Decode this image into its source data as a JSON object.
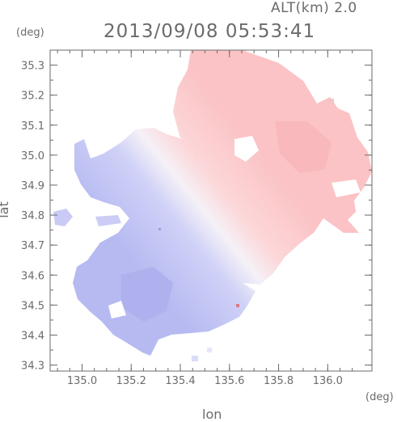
{
  "header": {
    "altitude": "ALT(km) 2.0",
    "timestamp": "2013/09/08 05:53:41"
  },
  "axes": {
    "lat_unit": "(deg)",
    "lon_unit": "(deg)",
    "lat_label": "lat",
    "lon_label": "lon",
    "x_range": [
      134.87,
      136.18
    ],
    "y_range": [
      34.28,
      35.35
    ],
    "x_ticks": [
      "135.0",
      "135.2",
      "135.4",
      "135.6",
      "135.8",
      "136.0"
    ],
    "x_tick_values": [
      135.0,
      135.2,
      135.4,
      135.6,
      135.8,
      136.0
    ],
    "y_ticks": [
      "34.3",
      "34.4",
      "34.5",
      "34.6",
      "34.7",
      "34.8",
      "34.9",
      "35.0",
      "35.1",
      "35.2",
      "35.3"
    ],
    "y_tick_values": [
      34.3,
      34.4,
      34.5,
      34.6,
      34.7,
      34.8,
      34.9,
      35.0,
      35.1,
      35.2,
      35.3
    ]
  },
  "colors": {
    "approaching": "#b9bcf2",
    "approaching_light": "#dadcfa",
    "receding": "#fbc4c6",
    "receding_light": "#fde0e1",
    "neutral": "#f7f0f6",
    "frame": "#6b6b6b"
  }
}
